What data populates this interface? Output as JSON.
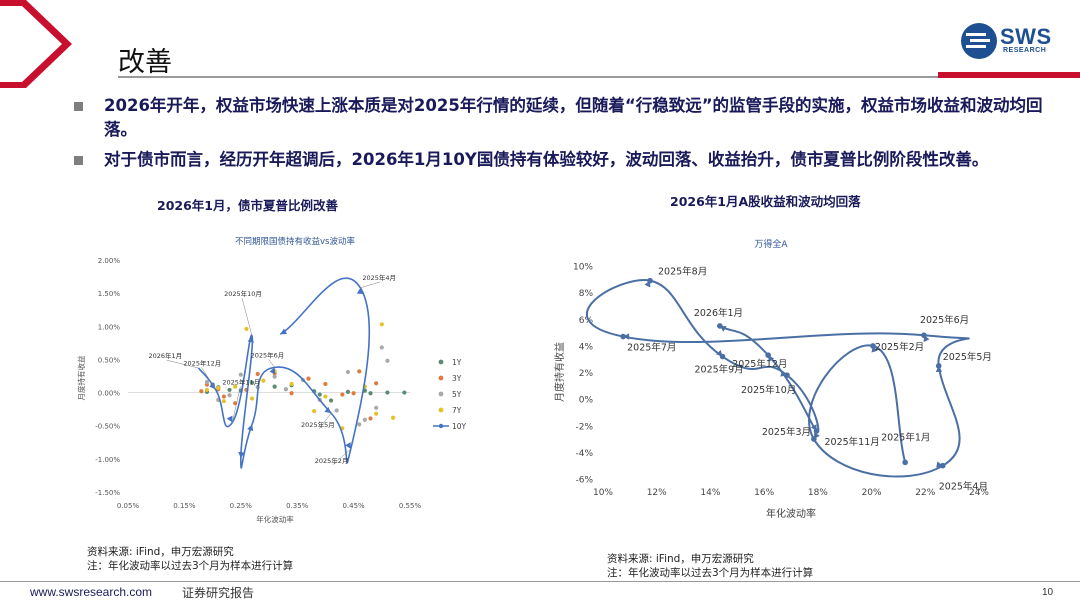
{
  "header": {
    "title": "改善",
    "logo_text": "SWS",
    "logo_subtext": "RESEARCH",
    "accent_color": "#c8102e",
    "brand_color": "#1d4f91"
  },
  "bullets": [
    "2026年开年，权益市场快速上涨本质是对2025年行情的延续，但随着“行稳致远”的监管手段的实施，权益市场收益和波动均回落。",
    "对于债市而言，经历开年超调后，2026年1月10Y国债持有体验较好，波动回落、收益抬升，债市夏普比例阶段性改善。"
  ],
  "left_panel": {
    "heading": "2026年1月，债市夏普比例改善",
    "source": "资料来源: iFind，申万宏源研究",
    "note": "注：年化波动率以过去3个月为样本进行计算"
  },
  "right_panel": {
    "heading": "2026年1月A股收益和波动均回落",
    "source": "资料来源: iFind，申万宏源研究",
    "note": "注：年化波动率以过去3个月为样本进行计算"
  },
  "footer": {
    "url": "www.swsresearch.com",
    "label": "证券研究报告",
    "page": "10"
  },
  "chart_data": [
    {
      "type": "scatter",
      "title": "不同期限国债持有收益vs波动率",
      "xlabel": "年化波动率",
      "ylabel": "月度持有收益",
      "xlim": [
        0.0005,
        0.0055
      ],
      "ylim": [
        -0.015,
        0.02
      ],
      "x_ticks": [
        "0.05%",
        "0.15%",
        "0.25%",
        "0.35%",
        "0.45%",
        "0.55%"
      ],
      "y_ticks": [
        "2.00%",
        "1.50%",
        "1.00%",
        "0.50%",
        "0.00%",
        "-0.50%",
        "-1.00%",
        "-1.50%"
      ],
      "legend_position": "right",
      "series": [
        {
          "name": "1Y",
          "color": "#5b8a72",
          "points": [
            [
              0.0019,
              0.0001
            ],
            [
              0.002,
              0.0012
            ],
            [
              0.0021,
              0.0008
            ],
            [
              0.0023,
              0.0004
            ],
            [
              0.0025,
              0.0003
            ],
            [
              0.0027,
              0.0015
            ],
            [
              0.0031,
              0.0009
            ],
            [
              0.0034,
              0.0011
            ],
            [
              0.0038,
              0.0002
            ],
            [
              0.0039,
              -0.0003
            ],
            [
              0.0041,
              -0.0012
            ],
            [
              0.0044,
              0.0001
            ],
            [
              0.0047,
              0.0003
            ],
            [
              0.0048,
              -0.0001
            ],
            [
              0.0051,
              0.0
            ],
            [
              0.0054,
              0.0
            ]
          ]
        },
        {
          "name": "3Y",
          "color": "#e07a3f",
          "points": [
            [
              0.0018,
              0.0002
            ],
            [
              0.0019,
              0.0012
            ],
            [
              0.0021,
              0.0005
            ],
            [
              0.0022,
              -0.0006
            ],
            [
              0.0024,
              -0.0016
            ],
            [
              0.0026,
              0.0004
            ],
            [
              0.0028,
              0.0028
            ],
            [
              0.0031,
              0.0029
            ],
            [
              0.0034,
              -0.0001
            ],
            [
              0.0037,
              0.0021
            ],
            [
              0.004,
              0.0013
            ],
            [
              0.0043,
              -0.0003
            ],
            [
              0.0045,
              -0.0001
            ],
            [
              0.0046,
              0.0032
            ],
            [
              0.0048,
              -0.0039
            ],
            [
              0.0049,
              0.0014
            ]
          ]
        },
        {
          "name": "5Y",
          "color": "#a9a9a9",
          "points": [
            [
              0.0019,
              0.0016
            ],
            [
              0.0021,
              -0.0011
            ],
            [
              0.0023,
              -0.0004
            ],
            [
              0.0025,
              0.0027
            ],
            [
              0.0028,
              0.0008
            ],
            [
              0.0031,
              0.0024
            ],
            [
              0.0033,
              0.0005
            ],
            [
              0.0036,
              0.0019
            ],
            [
              0.0039,
              -0.0011
            ],
            [
              0.0042,
              -0.0027
            ],
            [
              0.0044,
              0.0031
            ],
            [
              0.0047,
              -0.0041
            ],
            [
              0.0049,
              -0.0023
            ],
            [
              0.0051,
              0.0048
            ],
            [
              0.005,
              0.0068
            ],
            [
              0.0046,
              -0.0048
            ]
          ]
        },
        {
          "name": "7Y",
          "color": "#e6c229",
          "points": [
            [
              0.0019,
              0.0004
            ],
            [
              0.0021,
              0.0007
            ],
            [
              0.0022,
              -0.0013
            ],
            [
              0.0024,
              0.0009
            ],
            [
              0.0026,
              0.0096
            ],
            [
              0.0027,
              -0.0009
            ],
            [
              0.0029,
              0.0018
            ],
            [
              0.0031,
              0.0032
            ],
            [
              0.0034,
              0.0013
            ],
            [
              0.0038,
              -0.0028
            ],
            [
              0.004,
              -0.0006
            ],
            [
              0.0043,
              -0.0054
            ],
            [
              0.0047,
              0.0009
            ],
            [
              0.0049,
              -0.0032
            ],
            [
              0.005,
              0.0103
            ],
            [
              0.0052,
              -0.0038
            ]
          ]
        },
        {
          "name": "10Y",
          "color": "#4472c4",
          "points": [
            {
              "label": "2026年1月",
              "x": 0.00175,
              "y": 0.0037
            },
            {
              "label": "2025年12月",
              "x": 0.00205,
              "y": 0.0005
            },
            {
              "label": "2025年11月",
              "x": 0.00235,
              "y": -0.0045
            },
            {
              "label": "2025年10月",
              "x": 0.0027,
              "y": 0.0085
            },
            {
              "label": "",
              "x": 0.0025,
              "y": -0.0099
            },
            {
              "label": "",
              "x": 0.0027,
              "y": -0.0048
            },
            {
              "label": "2025年6月",
              "x": 0.0031,
              "y": 0.0038
            },
            {
              "label": "2025年5月",
              "x": 0.0041,
              "y": -0.0031
            },
            {
              "label": "2025年2月",
              "x": 0.00445,
              "y": -0.0085
            },
            {
              "label": "2025年4月",
              "x": 0.00462,
              "y": 0.0158
            },
            {
              "label": "",
              "x": 0.0032,
              "y": 0.0088
            }
          ]
        }
      ]
    },
    {
      "type": "line",
      "title": "万得全A",
      "xlabel": "年化波动率",
      "ylabel": "月度持有收益",
      "xlim": [
        0.1,
        0.24
      ],
      "ylim": [
        -0.06,
        0.1
      ],
      "x_ticks": [
        "10%",
        "12%",
        "14%",
        "16%",
        "18%",
        "20%",
        "22%",
        "24%"
      ],
      "y_ticks": [
        "10%",
        "8%",
        "6%",
        "4%",
        "2%",
        "0%",
        "-2%",
        "-4%",
        "-6%"
      ],
      "series": [
        {
          "name": "万得全A",
          "color": "#4a6fa5",
          "points": [
            {
              "label": "2025年1月",
              "x": 0.2125,
              "y": -0.0475
            },
            {
              "label": "2025年2月",
              "x": 0.2005,
              "y": 0.04
            },
            {
              "label": "2025年3月",
              "x": 0.1785,
              "y": -0.03
            },
            {
              "label": "2025年4月",
              "x": 0.2265,
              "y": -0.05
            },
            {
              "label": "2025年5月",
              "x": 0.225,
              "y": 0.025
            },
            {
              "label": "2025年6月",
              "x": 0.2195,
              "y": 0.048
            },
            {
              "label": "2025年7月",
              "x": 0.1075,
              "y": 0.047
            },
            {
              "label": "2025年8月",
              "x": 0.1175,
              "y": 0.089
            },
            {
              "label": "2025年9月",
              "x": 0.1445,
              "y": 0.032
            },
            {
              "label": "2025年10月",
              "x": 0.1685,
              "y": 0.018
            },
            {
              "label": "2025年11月",
              "x": 0.1795,
              "y": -0.024
            },
            {
              "label": "2025年12月",
              "x": 0.1615,
              "y": 0.033
            },
            {
              "label": "2026年1月",
              "x": 0.1435,
              "y": 0.055
            }
          ]
        }
      ]
    }
  ]
}
